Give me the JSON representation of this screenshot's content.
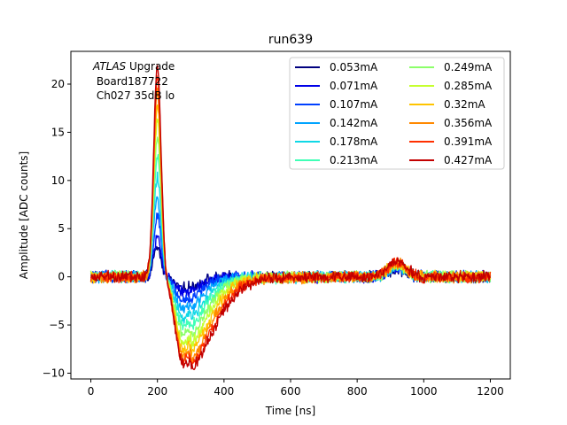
{
  "chart_data": {
    "type": "line",
    "title": "run639",
    "xlabel": "Time [ns]",
    "ylabel": "Amplitude [ADC counts]",
    "xlim": [
      -60,
      1260
    ],
    "ylim": [
      -10.6,
      23.4
    ],
    "xticks": [
      0,
      200,
      400,
      600,
      800,
      1000,
      1200
    ],
    "yticks": [
      -10,
      -5,
      0,
      5,
      10,
      15,
      20
    ],
    "annotation": {
      "experiment": "ATLAS",
      "experiment_suffix": " Upgrade",
      "board": " Board187722",
      "channel": " Ch027 35dB lo"
    },
    "legend_position": "top-right",
    "series": [
      {
        "name": "0.053mA",
        "color": "#00007f",
        "peak": 3.0,
        "trough": -1.2
      },
      {
        "name": "0.071mA",
        "color": "#0000e8",
        "peak": 4.2,
        "trough": -1.6
      },
      {
        "name": "0.107mA",
        "color": "#0040ff",
        "peak": 6.2,
        "trough": -2.4
      },
      {
        "name": "0.142mA",
        "color": "#00a4ff",
        "peak": 8.2,
        "trough": -3.3
      },
      {
        "name": "0.178mA",
        "color": "#10d8e6",
        "peak": 10.5,
        "trough": -4.2
      },
      {
        "name": "0.213mA",
        "color": "#40ffb6",
        "peak": 12.5,
        "trough": -5.0
      },
      {
        "name": "0.249mA",
        "color": "#8cff6a",
        "peak": 14.5,
        "trough": -5.9
      },
      {
        "name": "0.285mA",
        "color": "#c6ff30",
        "peak": 16.3,
        "trough": -6.7
      },
      {
        "name": "0.32mA",
        "color": "#ffc400",
        "peak": 17.8,
        "trough": -7.4
      },
      {
        "name": "0.356mA",
        "color": "#ff8900",
        "peak": 19.3,
        "trough": -8.1
      },
      {
        "name": "0.391mA",
        "color": "#ff3000",
        "peak": 20.8,
        "trough": -8.6
      },
      {
        "name": "0.427mA",
        "color": "#c30000",
        "peak": 22.0,
        "trough": -9.0
      }
    ]
  }
}
